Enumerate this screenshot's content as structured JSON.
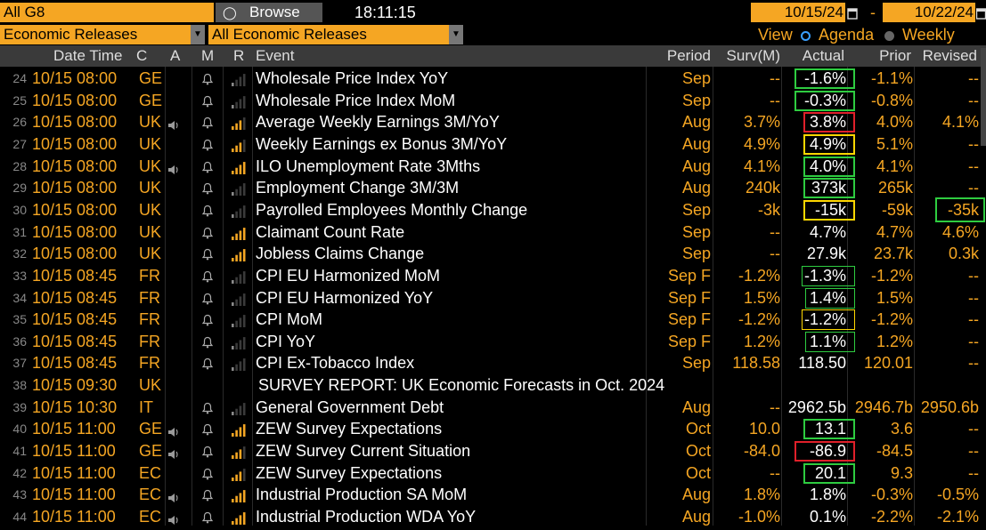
{
  "toolbar": {
    "region": "All G8",
    "browse_label": "Browse",
    "clock": "18:11:15",
    "start_date": "10/15/24",
    "date_sep": "-",
    "end_date": "10/22/24",
    "filter1": "Economic Releases",
    "filter2": "All Economic Releases",
    "view_label": "View",
    "agenda_label": "Agenda",
    "weekly_label": "Weekly"
  },
  "columns": {
    "datetime": "Date Time",
    "country": "C",
    "alert": "A",
    "mail": "M",
    "relevance": "R",
    "event": "Event",
    "period": "Period",
    "surv": "Surv(M)",
    "actual": "Actual",
    "prior": "Prior",
    "revised": "Revised"
  },
  "rows": [
    {
      "n": "24",
      "dt": "10/15 08:00",
      "c": "GE",
      "ev": "Wholesale Price Index YoY",
      "per": "Sep",
      "surv": "--",
      "act": "-1.6%",
      "pri": "-1.1%",
      "rev": "--",
      "spk": false,
      "bell": true,
      "bars": 1,
      "hl": "green"
    },
    {
      "n": "25",
      "dt": "10/15 08:00",
      "c": "GE",
      "ev": "Wholesale Price Index MoM",
      "per": "Sep",
      "surv": "--",
      "act": "-0.3%",
      "pri": "-0.8%",
      "rev": "--",
      "spk": false,
      "bell": true,
      "bars": 1,
      "hl": "green"
    },
    {
      "n": "26",
      "dt": "10/15 08:00",
      "c": "UK",
      "ev": "Average Weekly Earnings 3M/YoY",
      "per": "Aug",
      "surv": "3.7%",
      "act": "3.8%",
      "pri": "4.0%",
      "rev": "4.1%",
      "spk": true,
      "bell": true,
      "bars": 3,
      "hl": "red"
    },
    {
      "n": "27",
      "dt": "10/15 08:00",
      "c": "UK",
      "ev": "Weekly Earnings ex Bonus 3M/YoY",
      "per": "Aug",
      "surv": "4.9%",
      "act": "4.9%",
      "pri": "5.1%",
      "rev": "--",
      "spk": false,
      "bell": true,
      "bars": 3,
      "hl": "yellow"
    },
    {
      "n": "28",
      "dt": "10/15 08:00",
      "c": "UK",
      "ev": "ILO Unemployment Rate 3Mths",
      "per": "Aug",
      "surv": "4.1%",
      "act": "4.0%",
      "pri": "4.1%",
      "rev": "--",
      "spk": true,
      "bell": true,
      "bars": 4,
      "hl": "green"
    },
    {
      "n": "29",
      "dt": "10/15 08:00",
      "c": "UK",
      "ev": "Employment Change 3M/3M",
      "per": "Aug",
      "surv": "240k",
      "act": "373k",
      "pri": "265k",
      "rev": "--",
      "spk": false,
      "bell": true,
      "bars": 1,
      "hl": "green"
    },
    {
      "n": "30",
      "dt": "10/15 08:00",
      "c": "UK",
      "ev": "Payrolled Employees Monthly Change",
      "per": "Sep",
      "surv": "-3k",
      "act": "-15k",
      "pri": "-59k",
      "rev": "-35k",
      "spk": false,
      "bell": true,
      "bars": 1,
      "hl": "yellow",
      "rev_hl": "green"
    },
    {
      "n": "31",
      "dt": "10/15 08:00",
      "c": "UK",
      "ev": "Claimant Count Rate",
      "per": "Sep",
      "surv": "--",
      "act": "4.7%",
      "pri": "4.7%",
      "rev": "4.6%",
      "spk": false,
      "bell": true,
      "bars": 4,
      "hl": ""
    },
    {
      "n": "32",
      "dt": "10/15 08:00",
      "c": "UK",
      "ev": "Jobless Claims Change",
      "per": "Sep",
      "surv": "--",
      "act": "27.9k",
      "pri": "23.7k",
      "rev": "0.3k",
      "spk": false,
      "bell": true,
      "bars": 4,
      "hl": ""
    },
    {
      "n": "33",
      "dt": "10/15 08:45",
      "c": "FR",
      "ev": "CPI EU Harmonized MoM",
      "per": "Sep F",
      "surv": "-1.2%",
      "act": "-1.3%",
      "pri": "-1.2%",
      "rev": "--",
      "spk": false,
      "bell": true,
      "bars": 1,
      "hl": "green-thin"
    },
    {
      "n": "34",
      "dt": "10/15 08:45",
      "c": "FR",
      "ev": "CPI EU Harmonized YoY",
      "per": "Sep F",
      "surv": "1.5%",
      "act": "1.4%",
      "pri": "1.5%",
      "rev": "--",
      "spk": false,
      "bell": true,
      "bars": 1,
      "hl": "green-thin"
    },
    {
      "n": "35",
      "dt": "10/15 08:45",
      "c": "FR",
      "ev": "CPI MoM",
      "per": "Sep F",
      "surv": "-1.2%",
      "act": "-1.2%",
      "pri": "-1.2%",
      "rev": "--",
      "spk": false,
      "bell": true,
      "bars": 1,
      "hl": "yellow-thin"
    },
    {
      "n": "36",
      "dt": "10/15 08:45",
      "c": "FR",
      "ev": "CPI YoY",
      "per": "Sep F",
      "surv": "1.2%",
      "act": "1.1%",
      "pri": "1.2%",
      "rev": "--",
      "spk": false,
      "bell": true,
      "bars": 1,
      "hl": "green-thin"
    },
    {
      "n": "37",
      "dt": "10/15 08:45",
      "c": "FR",
      "ev": "CPI Ex-Tobacco Index",
      "per": "Sep",
      "surv": "118.58",
      "act": "118.50",
      "pri": "120.01",
      "rev": "--",
      "spk": false,
      "bell": true,
      "bars": 1,
      "hl": ""
    },
    {
      "n": "38",
      "dt": "10/15 09:30",
      "c": "UK",
      "ev": "SURVEY REPORT: UK Economic Forecasts in Oct. 2024",
      "per": "",
      "surv": "",
      "act": "",
      "pri": "",
      "rev": "",
      "spk": false,
      "bell": false,
      "bars": 0,
      "hl": "",
      "survey": true
    },
    {
      "n": "39",
      "dt": "10/15 10:30",
      "c": "IT",
      "ev": "General Government Debt",
      "per": "Aug",
      "surv": "--",
      "act": "2962.5b",
      "pri": "2946.7b",
      "rev": "2950.6b",
      "spk": false,
      "bell": true,
      "bars": 1,
      "hl": ""
    },
    {
      "n": "40",
      "dt": "10/15 11:00",
      "c": "GE",
      "ev": "ZEW Survey Expectations",
      "per": "Oct",
      "surv": "10.0",
      "act": "13.1",
      "pri": "3.6",
      "rev": "--",
      "spk": true,
      "bell": true,
      "bars": 4,
      "hl": "green"
    },
    {
      "n": "41",
      "dt": "10/15 11:00",
      "c": "GE",
      "ev": "ZEW Survey Current Situation",
      "per": "Oct",
      "surv": "-84.0",
      "act": "-86.9",
      "pri": "-84.5",
      "rev": "--",
      "spk": true,
      "bell": true,
      "bars": 3,
      "hl": "red"
    },
    {
      "n": "42",
      "dt": "10/15 11:00",
      "c": "EC",
      "ev": "ZEW Survey Expectations",
      "per": "Oct",
      "surv": "--",
      "act": "20.1",
      "pri": "9.3",
      "rev": "--",
      "spk": false,
      "bell": true,
      "bars": 3,
      "hl": "green"
    },
    {
      "n": "43",
      "dt": "10/15 11:00",
      "c": "EC",
      "ev": "Industrial Production SA MoM",
      "per": "Aug",
      "surv": "1.8%",
      "act": "1.8%",
      "pri": "-0.3%",
      "rev": "-0.5%",
      "spk": true,
      "bell": true,
      "bars": 4,
      "hl": ""
    },
    {
      "n": "44",
      "dt": "10/15 11:00",
      "c": "EC",
      "ev": "Industrial Production WDA YoY",
      "per": "Aug",
      "surv": "-1.0%",
      "act": "0.1%",
      "pri": "-2.2%",
      "rev": "-2.1%",
      "spk": true,
      "bell": true,
      "bars": 4,
      "hl": ""
    }
  ],
  "colors": {
    "amber": "#f5a623",
    "green": "#2ecc40",
    "yellow": "#ffd700",
    "red": "#e0202a"
  }
}
